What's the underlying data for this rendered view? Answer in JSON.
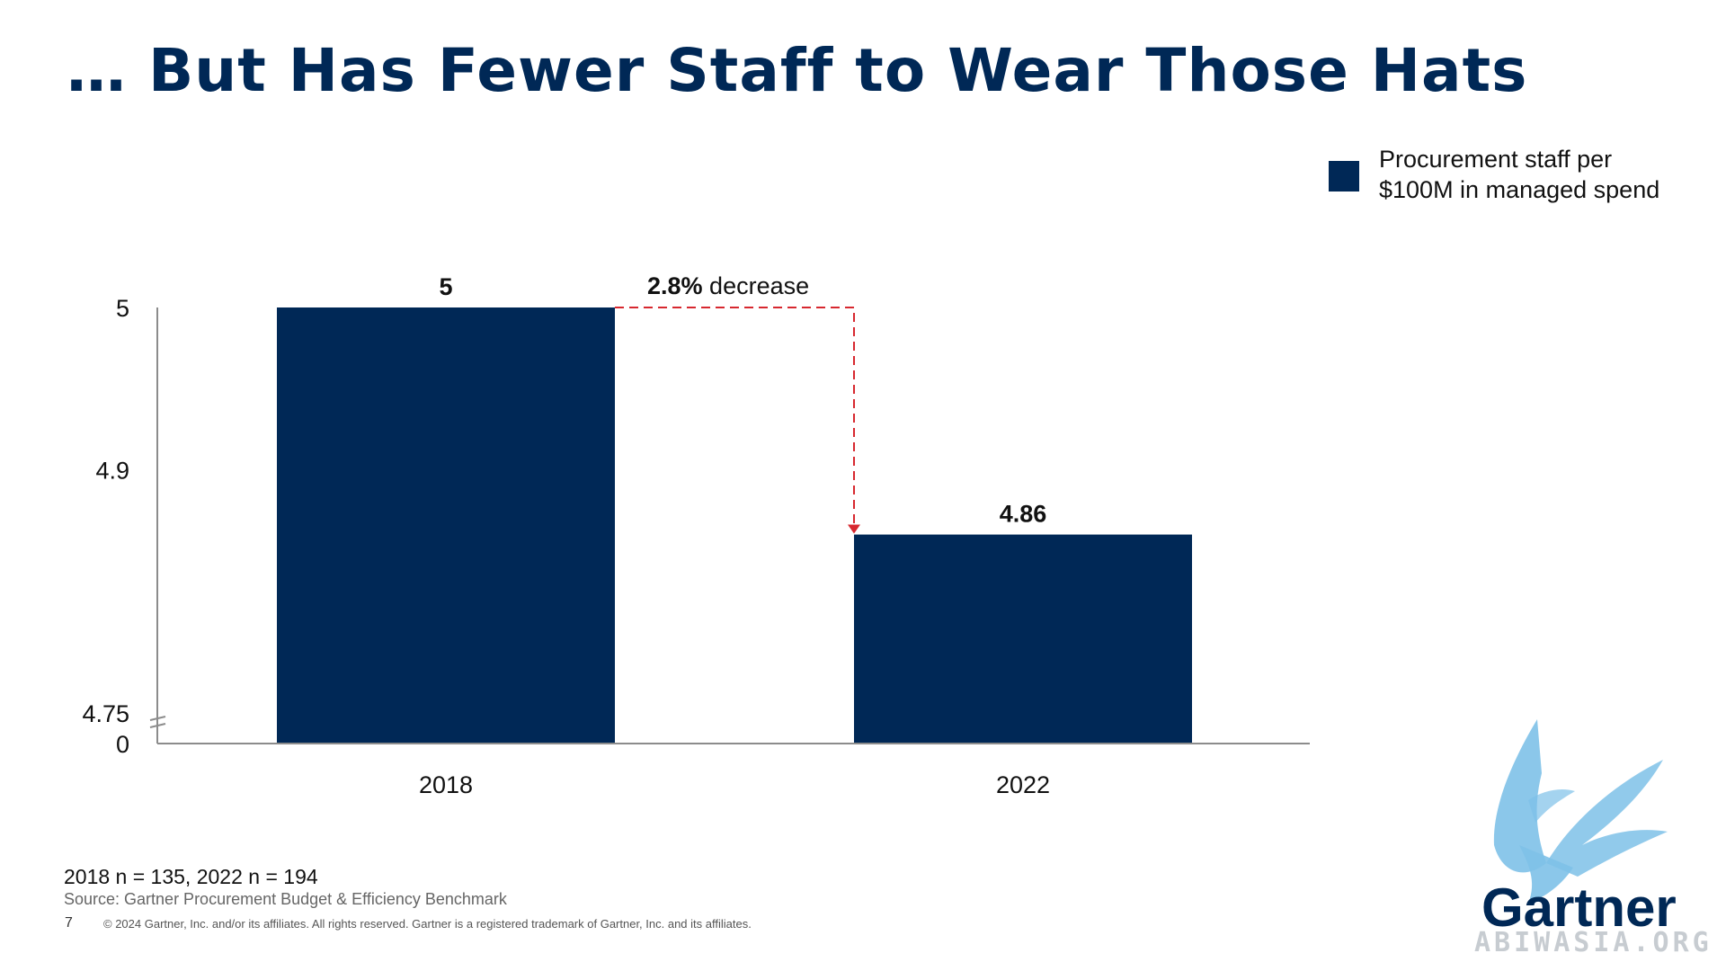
{
  "slide": {
    "title": "… But Has Fewer Staff to Wear Those Hats",
    "sample_note": "2018 n = 135, 2022 n = 194",
    "source": "Source: Gartner Procurement Budget & Efficiency Benchmark",
    "page_number": "7",
    "copyright": "© 2024 Gartner, Inc. and/or its affiliates. All rights reserved. Gartner is a registered trademark of Gartner, Inc. and its affiliates.",
    "logo_text": "Gartner",
    "watermark_text": "ABIWASIA.ORG"
  },
  "colors": {
    "title": "#002856",
    "bar": "#002856",
    "annotation_arrow": "#D7282F",
    "axis": "#8C8C8C",
    "logo_bird": "#7EC1E8",
    "logo_text": "#002856"
  },
  "chart_data": {
    "type": "bar",
    "categories": [
      "2018",
      "2022"
    ],
    "series": [
      {
        "name": "Procurement staff per $100M in managed spend",
        "values": [
          5,
          4.86
        ]
      }
    ],
    "data_labels": [
      "5",
      "4.86"
    ],
    "y_ticks": [
      "5",
      "4.9",
      "4.75",
      "0"
    ],
    "y_axis_break": true,
    "ylim": [
      4.75,
      5
    ],
    "annotation": {
      "bold_text": "2.8%",
      "text": " decrease",
      "from": "2018",
      "to": "2022"
    },
    "legend": {
      "position": "top-right",
      "label": "Procurement staff per $100M in managed spend"
    },
    "grid": false,
    "title": "",
    "xlabel": "",
    "ylabel": ""
  }
}
